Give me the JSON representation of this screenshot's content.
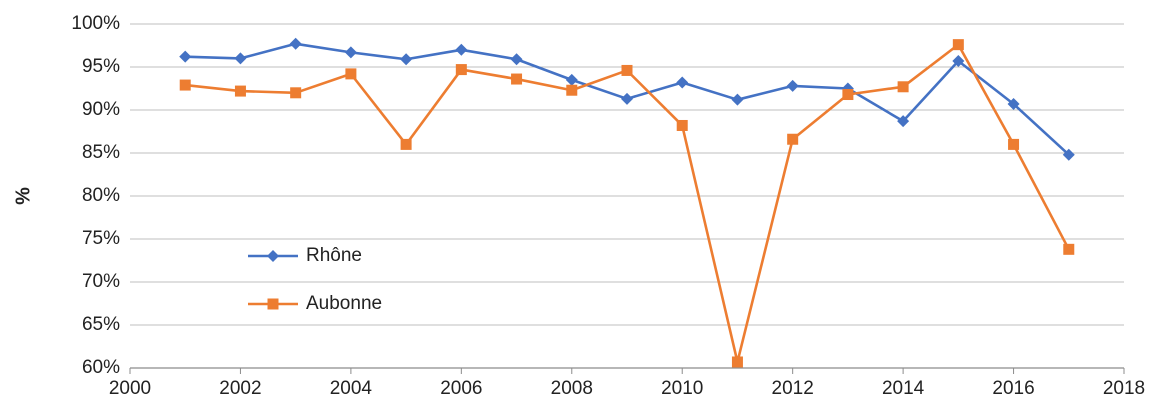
{
  "chart_data": {
    "type": "line",
    "title": "",
    "xlabel": "",
    "ylabel": "%",
    "xlim": [
      2000,
      2018
    ],
    "ylim": [
      0.6,
      1.0
    ],
    "x_ticks": [
      2000,
      2002,
      2004,
      2006,
      2008,
      2010,
      2012,
      2014,
      2016,
      2018
    ],
    "x_tick_labels": [
      "2000",
      "2002",
      "2004",
      "2006",
      "2008",
      "2010",
      "2012",
      "2014",
      "2016",
      "2018"
    ],
    "y_ticks": [
      0.6,
      0.65,
      0.7,
      0.75,
      0.8,
      0.85,
      0.9,
      0.95,
      1.0
    ],
    "y_tick_labels": [
      "60%",
      "65%",
      "70%",
      "75%",
      "80%",
      "85%",
      "90%",
      "95%",
      "100%"
    ],
    "grid": "horizontal",
    "legend_position": "center-left",
    "x": [
      2001,
      2002,
      2003,
      2004,
      2005,
      2006,
      2007,
      2008,
      2009,
      2010,
      2011,
      2012,
      2013,
      2014,
      2015,
      2016,
      2017
    ],
    "series": [
      {
        "name": "Rhône",
        "color": "#4472C4",
        "marker": "diamond",
        "values": [
          0.962,
          0.96,
          0.977,
          0.967,
          0.959,
          0.97,
          0.959,
          0.935,
          0.913,
          0.932,
          0.912,
          0.928,
          0.925,
          0.887,
          0.957,
          0.907,
          0.848
        ]
      },
      {
        "name": "Aubonne",
        "color": "#ED7D31",
        "marker": "square",
        "values": [
          0.929,
          0.922,
          0.92,
          0.942,
          0.86,
          0.947,
          0.936,
          0.923,
          0.946,
          0.882,
          0.607,
          0.866,
          0.918,
          0.927,
          0.976,
          0.86,
          0.738
        ]
      }
    ]
  }
}
